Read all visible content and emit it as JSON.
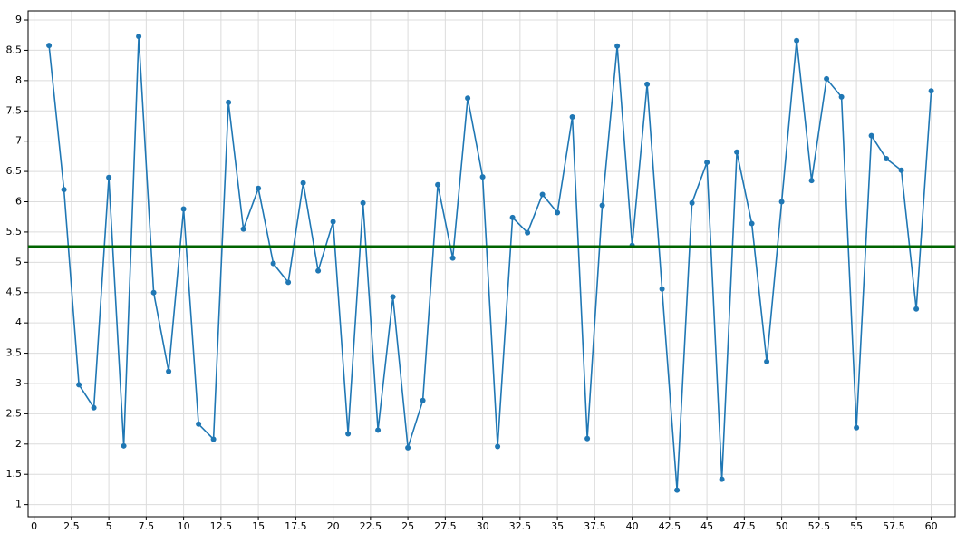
{
  "chart_data": {
    "type": "line",
    "x": [
      1,
      2,
      3,
      4,
      5,
      6,
      7,
      8,
      9,
      10,
      11,
      12,
      13,
      14,
      15,
      16,
      17,
      18,
      19,
      20,
      21,
      22,
      23,
      24,
      25,
      26,
      27,
      28,
      29,
      30,
      31,
      32,
      33,
      34,
      35,
      36,
      37,
      38,
      39,
      40,
      41,
      42,
      43,
      44,
      45,
      46,
      47,
      48,
      49,
      50,
      51,
      52,
      53,
      54,
      55,
      56,
      57,
      58,
      59,
      60
    ],
    "series": [
      {
        "color": "#1f77b4",
        "values": [
          8.58,
          6.2,
          2.98,
          2.6,
          6.4,
          1.97,
          8.73,
          4.5,
          3.2,
          5.88,
          2.33,
          2.08,
          7.64,
          5.55,
          6.22,
          4.98,
          4.67,
          6.31,
          4.86,
          5.67,
          2.17,
          5.98,
          2.23,
          4.43,
          1.94,
          2.72,
          6.28,
          5.07,
          7.71,
          6.41,
          1.96,
          5.74,
          5.49,
          6.12,
          5.82,
          7.4,
          2.09,
          5.94,
          8.57,
          5.28,
          7.94,
          4.56,
          1.24,
          5.98,
          6.65,
          1.42,
          6.82,
          5.64,
          3.36,
          6.0,
          8.66,
          6.35,
          8.03,
          7.73,
          2.27,
          7.09,
          6.71,
          6.52,
          4.23,
          7.83
        ]
      }
    ],
    "hline": {
      "value": 5.26,
      "color": "#006400"
    },
    "xlim": [
      -0.4,
      61.6
    ],
    "xticks": [
      0,
      2.5,
      5,
      7.5,
      10,
      12.5,
      15,
      17.5,
      20,
      22.5,
      25,
      27.5,
      30,
      32.5,
      35,
      37.5,
      40,
      42.5,
      45,
      47.5,
      50,
      52.5,
      55,
      57.5,
      60
    ],
    "ylim": [
      0.8,
      9.15
    ],
    "yticks": [
      1,
      1.5,
      2,
      2.5,
      3,
      3.5,
      4,
      4.5,
      5,
      5.5,
      6,
      6.5,
      7,
      7.5,
      8,
      8.5,
      9
    ],
    "grid": true
  }
}
